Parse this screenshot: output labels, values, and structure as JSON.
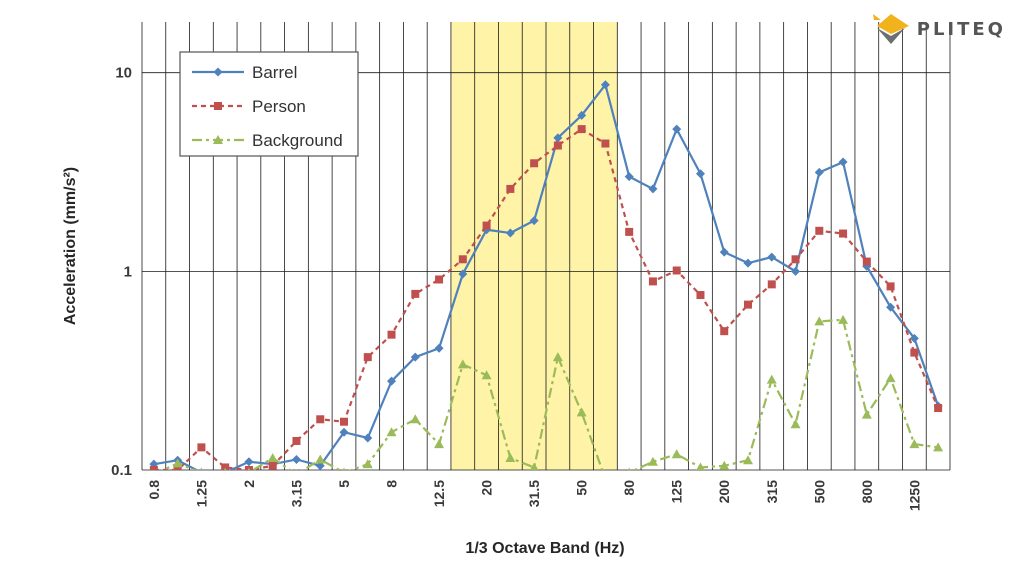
{
  "brand": {
    "name": "PLITEQ"
  },
  "colors": {
    "barrel": "#4f81bd",
    "person": "#c0504d",
    "background": "#9bbb59",
    "highlight": "#fff3a8",
    "grid": "#1a1a1a"
  },
  "chart_data": {
    "type": "line",
    "title": "",
    "xlabel": "1/3 Octave Band (Hz)",
    "ylabel": "Acceleration (mm/s²)",
    "yscale": "log",
    "ylim": [
      0.1,
      18
    ],
    "y_ticks": [
      "0.1",
      "1",
      "10"
    ],
    "x_tick_labels": [
      "0.8",
      "1.25",
      "2",
      "3.15",
      "5",
      "8",
      "12.5",
      "20",
      "31.5",
      "50",
      "80",
      "125",
      "200",
      "315",
      "500",
      "800",
      "1250"
    ],
    "bands": [
      "0.8",
      "1",
      "1.25",
      "1.6",
      "2",
      "2.5",
      "3.15",
      "4",
      "5",
      "6.3",
      "8",
      "10",
      "12.5",
      "16",
      "20",
      "25",
      "31.5",
      "40",
      "50",
      "63",
      "80",
      "100",
      "125",
      "160",
      "200",
      "250",
      "315",
      "400",
      "500",
      "630",
      "800",
      "1000",
      "1250",
      "1600"
    ],
    "highlight_band": [
      "16",
      "63"
    ],
    "legend": {
      "position": "top-left",
      "entries": [
        "Barrel",
        "Person",
        "Background"
      ]
    },
    "grid": true,
    "series": [
      {
        "name": "Barrel",
        "marker": "diamond",
        "dash": "solid",
        "values": [
          0.107,
          0.112,
          0.097,
          0.097,
          0.11,
          0.107,
          0.113,
          0.105,
          0.155,
          0.145,
          0.28,
          0.37,
          0.41,
          0.97,
          1.62,
          1.56,
          1.8,
          4.7,
          6.1,
          8.7,
          3.0,
          2.6,
          5.2,
          3.1,
          1.25,
          1.1,
          1.18,
          1.0,
          3.15,
          3.55,
          1.06,
          0.66,
          0.46,
          0.21
        ]
      },
      {
        "name": "Person",
        "marker": "square",
        "dash": "dashed",
        "values": [
          0.1,
          0.1,
          0.13,
          0.103,
          0.1,
          0.105,
          0.14,
          0.18,
          0.175,
          0.37,
          0.48,
          0.77,
          0.91,
          1.15,
          1.7,
          2.6,
          3.5,
          4.3,
          5.2,
          4.4,
          1.58,
          0.89,
          1.01,
          0.76,
          0.5,
          0.68,
          0.86,
          1.15,
          1.6,
          1.55,
          1.12,
          0.84,
          0.39,
          0.205
        ]
      },
      {
        "name": "Background",
        "marker": "triangle",
        "dash": "dashdot",
        "values": [
          0.095,
          0.108,
          0.097,
          0.097,
          0.097,
          0.115,
          0.095,
          0.113,
          0.097,
          0.107,
          0.155,
          0.18,
          0.135,
          0.34,
          0.3,
          0.115,
          0.103,
          0.37,
          0.195,
          0.09,
          0.097,
          0.11,
          0.12,
          0.103,
          0.105,
          0.112,
          0.285,
          0.17,
          0.56,
          0.57,
          0.19,
          0.29,
          0.135,
          0.13
        ]
      }
    ]
  }
}
